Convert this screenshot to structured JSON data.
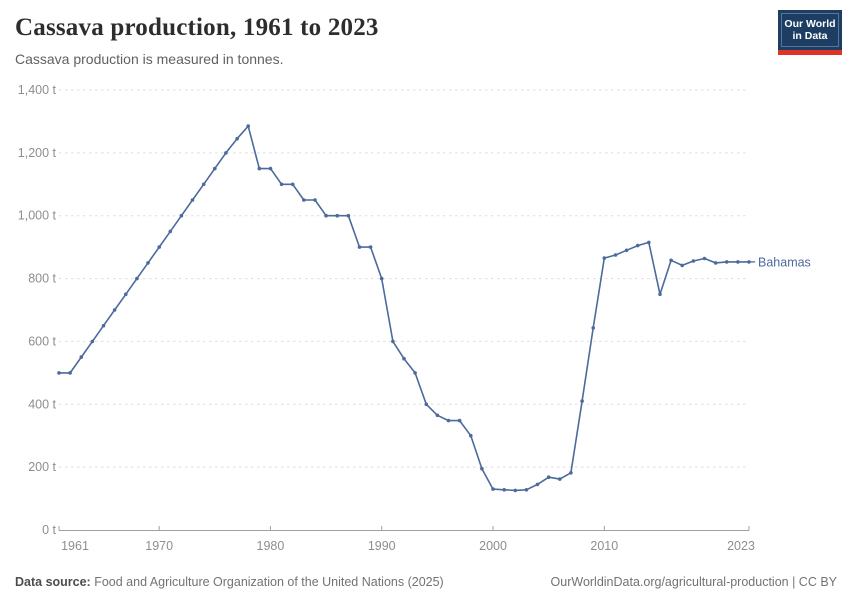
{
  "branding": {
    "logo_line1": "Our World",
    "logo_line2": "in Data",
    "logo_bg": "#1d3d63",
    "logo_border": "#5c7499",
    "logo_accent": "#dc3426"
  },
  "chart_data": {
    "type": "line",
    "title": "Cassava production, 1961 to 2023",
    "subtitle": "Cassava production is measured in tonnes.",
    "x": [
      1961,
      1962,
      1963,
      1964,
      1965,
      1966,
      1967,
      1968,
      1969,
      1970,
      1971,
      1972,
      1973,
      1974,
      1975,
      1976,
      1977,
      1978,
      1979,
      1980,
      1981,
      1982,
      1983,
      1984,
      1985,
      1986,
      1987,
      1988,
      1989,
      1990,
      1991,
      1992,
      1993,
      1994,
      1995,
      1996,
      1997,
      1998,
      1999,
      2000,
      2001,
      2002,
      2003,
      2004,
      2005,
      2006,
      2007,
      2008,
      2009,
      2010,
      2011,
      2012,
      2013,
      2014,
      2015,
      2016,
      2017,
      2018,
      2019,
      2020,
      2021,
      2022,
      2023
    ],
    "series": [
      {
        "name": "Bahamas",
        "color": "#4C6A9C",
        "values": [
          500,
          500,
          550,
          600,
          650,
          700,
          750,
          800,
          850,
          900,
          950,
          1000,
          1050,
          1100,
          1150,
          1200,
          1245,
          1285,
          1150,
          1150,
          1100,
          1100,
          1050,
          1050,
          1000,
          1000,
          1000,
          900,
          900,
          800,
          600,
          545,
          500,
          400,
          365,
          348,
          348,
          300,
          195,
          130,
          128,
          126,
          128,
          145,
          168,
          162,
          182,
          410,
          643,
          865,
          875,
          890,
          905,
          915,
          750,
          858,
          842,
          856,
          864,
          850,
          853,
          853,
          853
        ]
      }
    ],
    "xlim": [
      1961,
      2023
    ],
    "ylim": [
      0,
      1400
    ],
    "y_ticks": [
      0,
      200,
      400,
      600,
      800,
      1000,
      1200,
      1400
    ],
    "x_ticks": [
      1961,
      1970,
      1980,
      1990,
      2000,
      2010,
      2023
    ],
    "y_tick_suffix": " t",
    "grid": "horizontal-dashed",
    "legend_position": "end-of-line-label",
    "colors": {
      "grid": "#dddddd",
      "axis": "#a1a1a1",
      "tick_label": "#8e8e8e"
    }
  },
  "footer": {
    "source_label": "Data source:",
    "source_text": " Food and Agriculture Organization of the United Nations (2025)",
    "link_text": "OurWorldinData.org/agricultural-production | CC BY"
  }
}
